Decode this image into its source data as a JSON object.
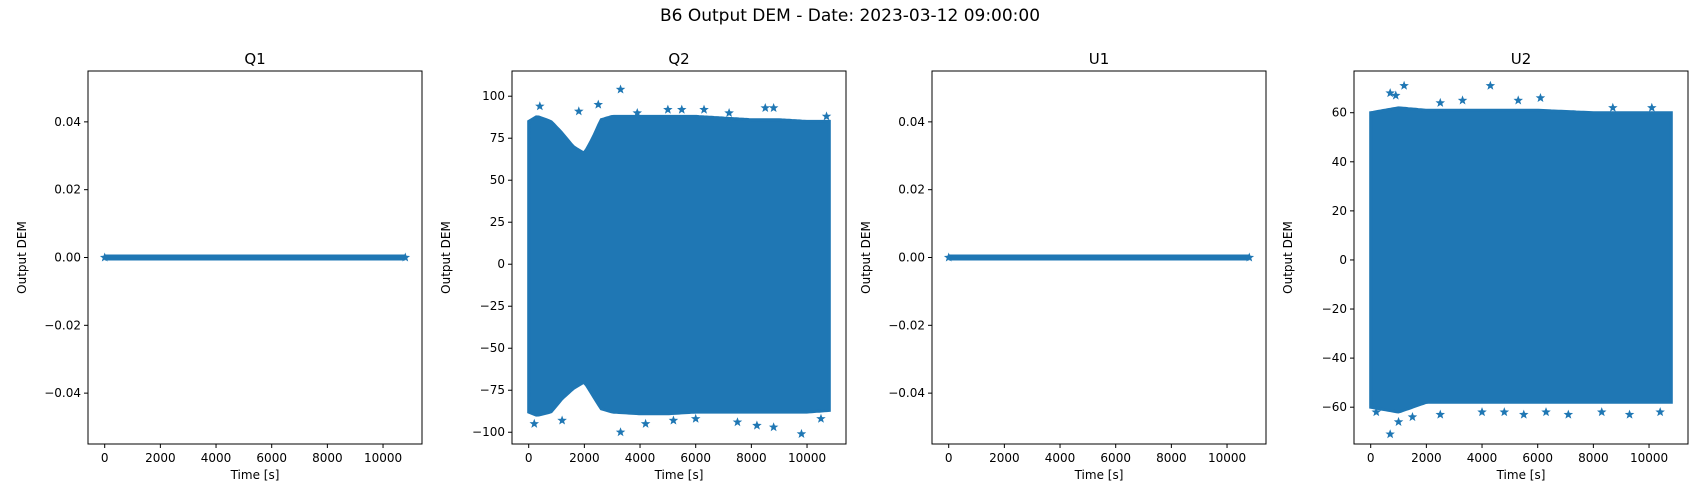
{
  "figure": {
    "title": "B6 Output DEM - Date: 2023-03-12 09:00:00"
  },
  "chart_data": [
    {
      "type": "scatter",
      "title": "Q1",
      "xlabel": "Time [s]",
      "ylabel": "Output DEM",
      "marker": "star",
      "color": "#1f77b4",
      "xlim": [
        -600,
        11400
      ],
      "ylim": [
        -0.055,
        0.055
      ],
      "xticks": [
        0,
        2000,
        4000,
        6000,
        8000,
        10000
      ],
      "yticks": [
        -0.04,
        -0.02,
        0.0,
        0.02,
        0.04
      ],
      "ytick_labels": [
        "−0.04",
        "−0.02",
        "0.00",
        "0.02",
        "0.04"
      ],
      "x_range": [
        0,
        10800
      ],
      "y_envelope": {
        "x": [
          0,
          10800
        ],
        "upper": [
          0,
          0
        ],
        "lower": [
          0,
          0
        ]
      },
      "outliers": []
    },
    {
      "type": "scatter",
      "title": "Q2",
      "xlabel": "Time [s]",
      "ylabel": "Output DEM",
      "marker": "star",
      "color": "#1f77b4",
      "xlim": [
        -600,
        11400
      ],
      "ylim": [
        -107,
        115
      ],
      "xticks": [
        0,
        2000,
        4000,
        6000,
        8000,
        10000
      ],
      "yticks": [
        -100,
        -75,
        -50,
        -25,
        0,
        25,
        50,
        75,
        100
      ],
      "ytick_labels": [
        "−100",
        "−75",
        "−50",
        "−25",
        "0",
        "25",
        "50",
        "75",
        "100"
      ],
      "x_range": [
        0,
        10800
      ],
      "y_envelope": {
        "x": [
          0,
          300,
          800,
          1200,
          1600,
          2000,
          2300,
          2600,
          3000,
          4000,
          5000,
          6000,
          7000,
          8000,
          9000,
          10000,
          10800
        ],
        "upper": [
          85,
          88,
          85,
          78,
          70,
          66,
          75,
          86,
          88,
          88,
          88,
          88,
          87,
          86,
          86,
          85,
          85
        ],
        "lower": [
          -88,
          -90,
          -88,
          -80,
          -74,
          -70,
          -78,
          -86,
          -88,
          -89,
          -89,
          -88,
          -88,
          -88,
          -88,
          -88,
          -87
        ]
      },
      "outliers": [
        [
          3300,
          104
        ],
        [
          400,
          94
        ],
        [
          1800,
          91
        ],
        [
          2500,
          95
        ],
        [
          3900,
          90
        ],
        [
          5000,
          92
        ],
        [
          5500,
          92
        ],
        [
          6300,
          92
        ],
        [
          7200,
          90
        ],
        [
          8500,
          93
        ],
        [
          8800,
          93
        ],
        [
          10700,
          88
        ],
        [
          200,
          -95
        ],
        [
          1200,
          -93
        ],
        [
          3300,
          -100
        ],
        [
          4200,
          -95
        ],
        [
          5200,
          -93
        ],
        [
          6000,
          -92
        ],
        [
          7500,
          -94
        ],
        [
          8200,
          -96
        ],
        [
          8800,
          -97
        ],
        [
          9800,
          -101
        ],
        [
          10500,
          -92
        ]
      ]
    },
    {
      "type": "scatter",
      "title": "U1",
      "xlabel": "Time [s]",
      "ylabel": "Output DEM",
      "marker": "star",
      "color": "#1f77b4",
      "xlim": [
        -600,
        11400
      ],
      "ylim": [
        -0.055,
        0.055
      ],
      "xticks": [
        0,
        2000,
        4000,
        6000,
        8000,
        10000
      ],
      "yticks": [
        -0.04,
        -0.02,
        0.0,
        0.02,
        0.04
      ],
      "ytick_labels": [
        "−0.04",
        "−0.02",
        "0.00",
        "0.02",
        "0.04"
      ],
      "x_range": [
        0,
        10800
      ],
      "y_envelope": {
        "x": [
          0,
          10800
        ],
        "upper": [
          0,
          0
        ],
        "lower": [
          0,
          0
        ]
      },
      "outliers": []
    },
    {
      "type": "scatter",
      "title": "U2",
      "xlabel": "Time [s]",
      "ylabel": "Output DEM",
      "marker": "star",
      "color": "#1f77b4",
      "xlim": [
        -600,
        11400
      ],
      "ylim": [
        -75,
        77
      ],
      "xticks": [
        0,
        2000,
        4000,
        6000,
        8000,
        10000
      ],
      "yticks": [
        -60,
        -40,
        -20,
        0,
        20,
        40,
        60
      ],
      "ytick_labels": [
        "−60",
        "−40",
        "−20",
        "0",
        "20",
        "40",
        "60"
      ],
      "x_range": [
        0,
        10800
      ],
      "y_envelope": {
        "x": [
          0,
          1000,
          2000,
          4000,
          6000,
          8000,
          10000,
          10800
        ],
        "upper": [
          60,
          62,
          61,
          61,
          61,
          60,
          60,
          60
        ],
        "lower": [
          -60,
          -62,
          -58,
          -58,
          -58,
          -58,
          -58,
          -58
        ]
      },
      "outliers": [
        [
          700,
          68
        ],
        [
          900,
          67
        ],
        [
          1200,
          71
        ],
        [
          2500,
          64
        ],
        [
          3300,
          65
        ],
        [
          4300,
          71
        ],
        [
          5300,
          65
        ],
        [
          6100,
          66
        ],
        [
          8700,
          62
        ],
        [
          10100,
          62
        ],
        [
          200,
          -62
        ],
        [
          700,
          -71
        ],
        [
          1000,
          -66
        ],
        [
          1500,
          -64
        ],
        [
          2500,
          -63
        ],
        [
          4000,
          -62
        ],
        [
          4800,
          -62
        ],
        [
          5500,
          -63
        ],
        [
          6300,
          -62
        ],
        [
          7100,
          -63
        ],
        [
          8300,
          -62
        ],
        [
          9300,
          -63
        ],
        [
          10400,
          -62
        ]
      ]
    }
  ]
}
